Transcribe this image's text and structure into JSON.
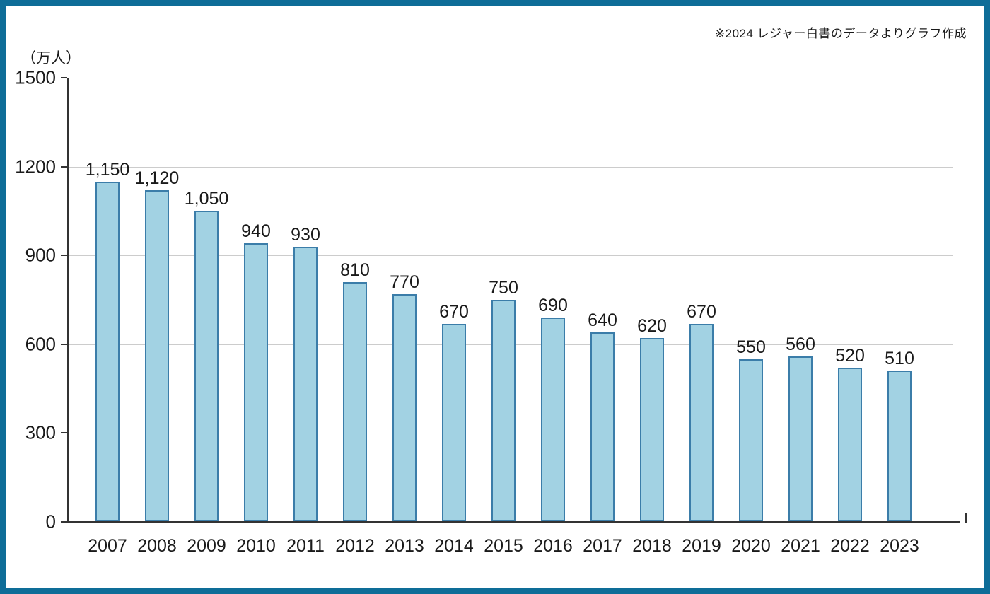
{
  "frame": {
    "border_color": "#0E6D98",
    "background": "#FFFFFF"
  },
  "source_note": "※2024 レジャー白書のデータよりグラフ作成",
  "chart_data": {
    "type": "bar",
    "title": "",
    "unit_label": "（万人）",
    "xlabel": "",
    "ylabel": "（万人）",
    "categories": [
      "2007",
      "2008",
      "2009",
      "2010",
      "2011",
      "2012",
      "2013",
      "2014",
      "2015",
      "2016",
      "2017",
      "2018",
      "2019",
      "2020",
      "2021",
      "2022",
      "2023"
    ],
    "values": [
      1150,
      1120,
      1050,
      940,
      930,
      810,
      770,
      670,
      750,
      690,
      640,
      620,
      670,
      550,
      560,
      520,
      510
    ],
    "value_labels": [
      "1,150",
      "1,120",
      "1,050",
      "940",
      "930",
      "810",
      "770",
      "670",
      "750",
      "690",
      "640",
      "620",
      "670",
      "550",
      "560",
      "520",
      "510"
    ],
    "ylim": [
      0,
      1500
    ],
    "y_ticks": [
      0,
      300,
      600,
      900,
      1200,
      1500
    ],
    "grid": true,
    "legend": "none",
    "colors": {
      "bar_fill": "#A2D2E3",
      "bar_border": "#3B7DA9",
      "gridline": "#CCCCCC",
      "axis": "#333333",
      "text": "#1A1A1A"
    }
  }
}
